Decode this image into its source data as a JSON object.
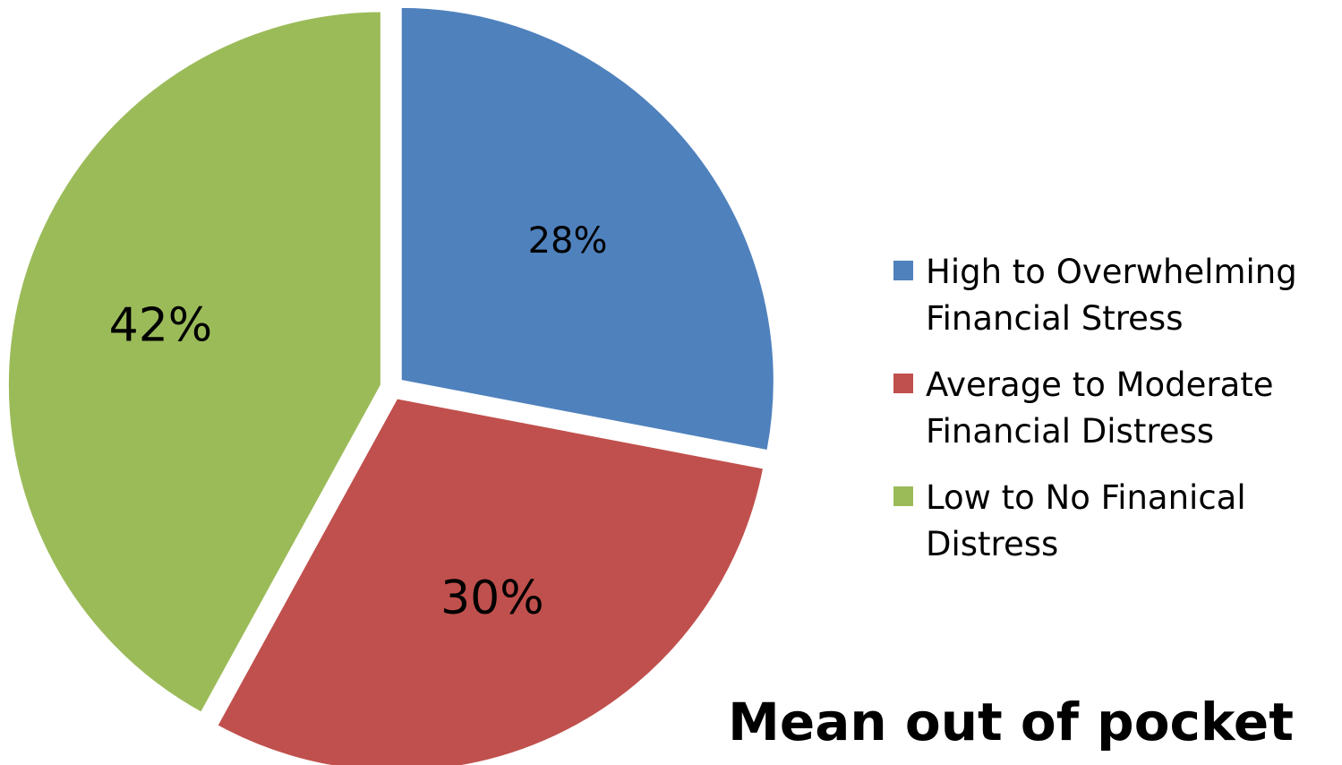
{
  "chart_data": {
    "type": "pie",
    "categories": [
      "High to Overwhelming Financial Stress",
      "Average to Moderate Financial Distress",
      "Low to No Finanical Distress"
    ],
    "values": [
      28,
      30,
      42
    ],
    "labels": [
      "28%",
      "30%",
      "42%"
    ],
    "colors": [
      "#4f81bd",
      "#c0504d",
      "#9bbb59"
    ],
    "legend_position": "right",
    "exploded": true
  },
  "legend": {
    "items": [
      {
        "label": "High to Overwhelming\nFinancial Stress",
        "color": "#4f81bd"
      },
      {
        "label": "Average to Moderate\nFinancial Distress",
        "color": "#c0504d"
      },
      {
        "label": "Low to No Finanical\nDistress",
        "color": "#9bbb59"
      }
    ]
  },
  "footnote": "Mean out of pocket"
}
